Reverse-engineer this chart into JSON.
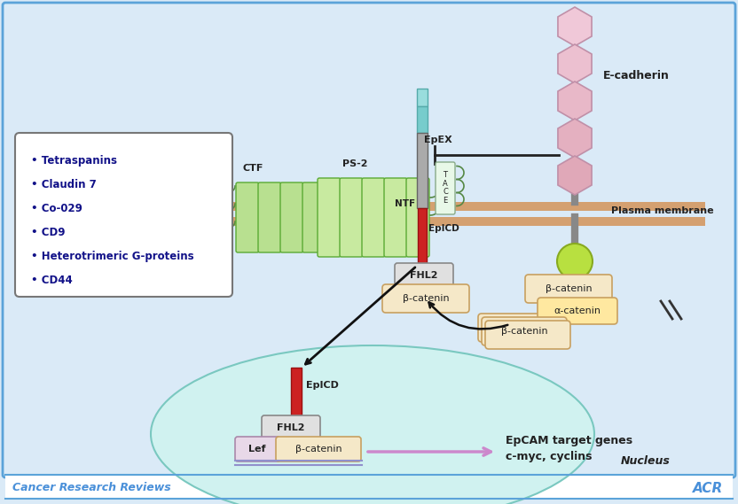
{
  "bg_color": "#daeaf7",
  "border_color": "#5ba3d9",
  "footer_line_color": "#5ba3d9",
  "title_bottom": "Cancer Research Reviews",
  "bullet_items": [
    "Tetraspanins",
    "Claudin 7",
    "Co-029",
    "CD9",
    "Heterotrimeric G-proteins",
    "CD44"
  ],
  "label_color_dark": "#222222",
  "label_color_blue": "#1a6eb5",
  "green_barrel_color": "#b8e090",
  "green_barrel_edge": "#5aaa33",
  "red_color": "#cc2222",
  "cyan_color": "#88dddd",
  "gray_color": "#999999",
  "yellow_pill_bg": "#f5e8c8",
  "yellow_pill_edge": "#c8a060",
  "gray_pill_bg": "#e0e0e0",
  "gray_pill_edge": "#888888",
  "pink_hex_colors": [
    "#f0c8d8",
    "#ecc0d0",
    "#e8b8c8",
    "#e4b0c0",
    "#e0a8b8"
  ],
  "pink_hex_edge": "#c090a8",
  "nucleus_face": "#d0f2f0",
  "nucleus_edge": "#7ac8c0",
  "membrane_color": "#d4a070",
  "green_circle_color": "#b8e040",
  "green_circle_edge": "#88aa20"
}
